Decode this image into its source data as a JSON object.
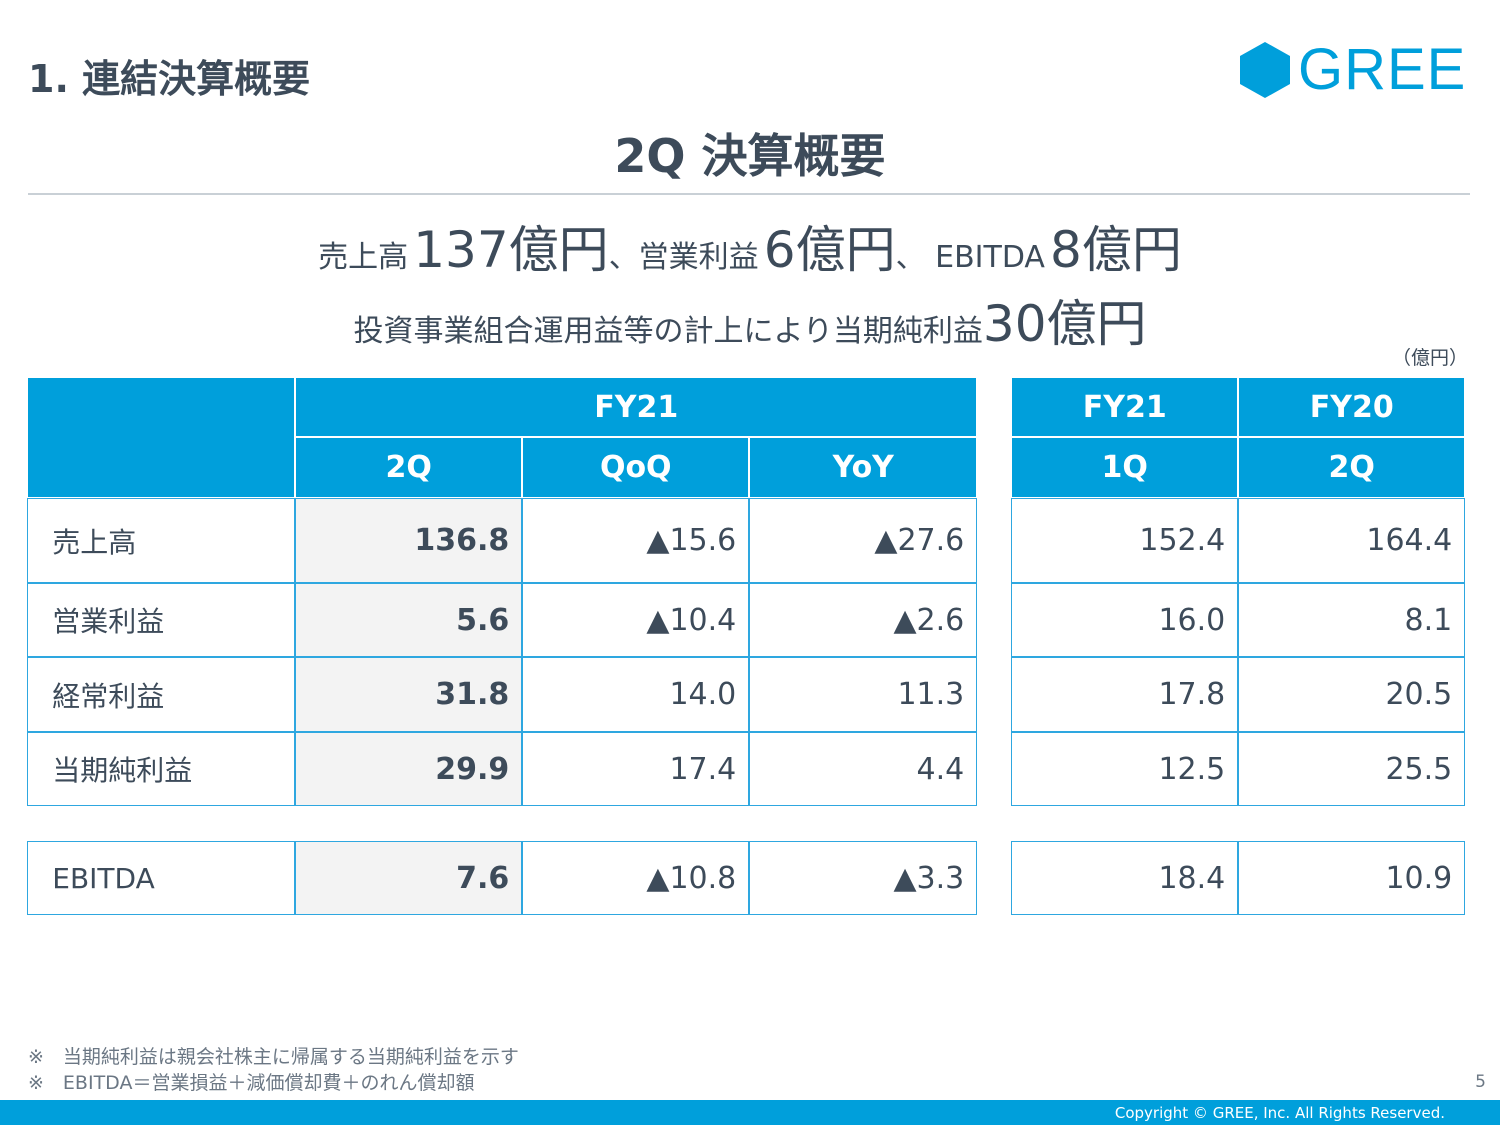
{
  "section_title": "1. 連結決算概要",
  "logo": {
    "text": "GREE",
    "color": "#009fdb"
  },
  "main_title": "2Q 決算概要",
  "headline1": {
    "a": "売上高",
    "b": "137億円",
    "c": "、営業利益",
    "d": "6億円",
    "e": "、 EBITDA",
    "f": "8億円"
  },
  "headline2": {
    "a": "投資事業組合運用益等の計上により当期純利益",
    "b": "30億円"
  },
  "unit": "（億円）",
  "table": {
    "header_fy21": "FY21",
    "header_fy21_right": "FY21",
    "header_fy20": "FY20",
    "sub": [
      "2Q",
      "QoQ",
      "YoY",
      "1Q",
      "2Q"
    ],
    "rows": [
      {
        "label": "売上高",
        "values": [
          "136.8",
          "▲15.6",
          "▲27.6",
          "152.4",
          "164.4"
        ]
      },
      {
        "label": "営業利益",
        "values": [
          "5.6",
          "▲10.4",
          "▲2.6",
          "16.0",
          "8.1"
        ]
      },
      {
        "label": "経常利益",
        "values": [
          "31.8",
          "14.0",
          "11.3",
          "17.8",
          "20.5"
        ]
      },
      {
        "label": "当期純利益",
        "values": [
          "29.9",
          "17.4",
          "4.4",
          "12.5",
          "25.5"
        ]
      }
    ],
    "ebitda": {
      "label": "EBITDA",
      "values": [
        "7.6",
        "▲10.8",
        "▲3.3",
        "18.4",
        "10.9"
      ]
    }
  },
  "notes": [
    "※　当期純利益は親会社株主に帰属する当期純利益を示す",
    "※　EBITDA＝営業損益＋減価償却費＋のれん償却額"
  ],
  "page_number": "5",
  "copyright": "Copyright © GREE, Inc. All Rights Reserved."
}
